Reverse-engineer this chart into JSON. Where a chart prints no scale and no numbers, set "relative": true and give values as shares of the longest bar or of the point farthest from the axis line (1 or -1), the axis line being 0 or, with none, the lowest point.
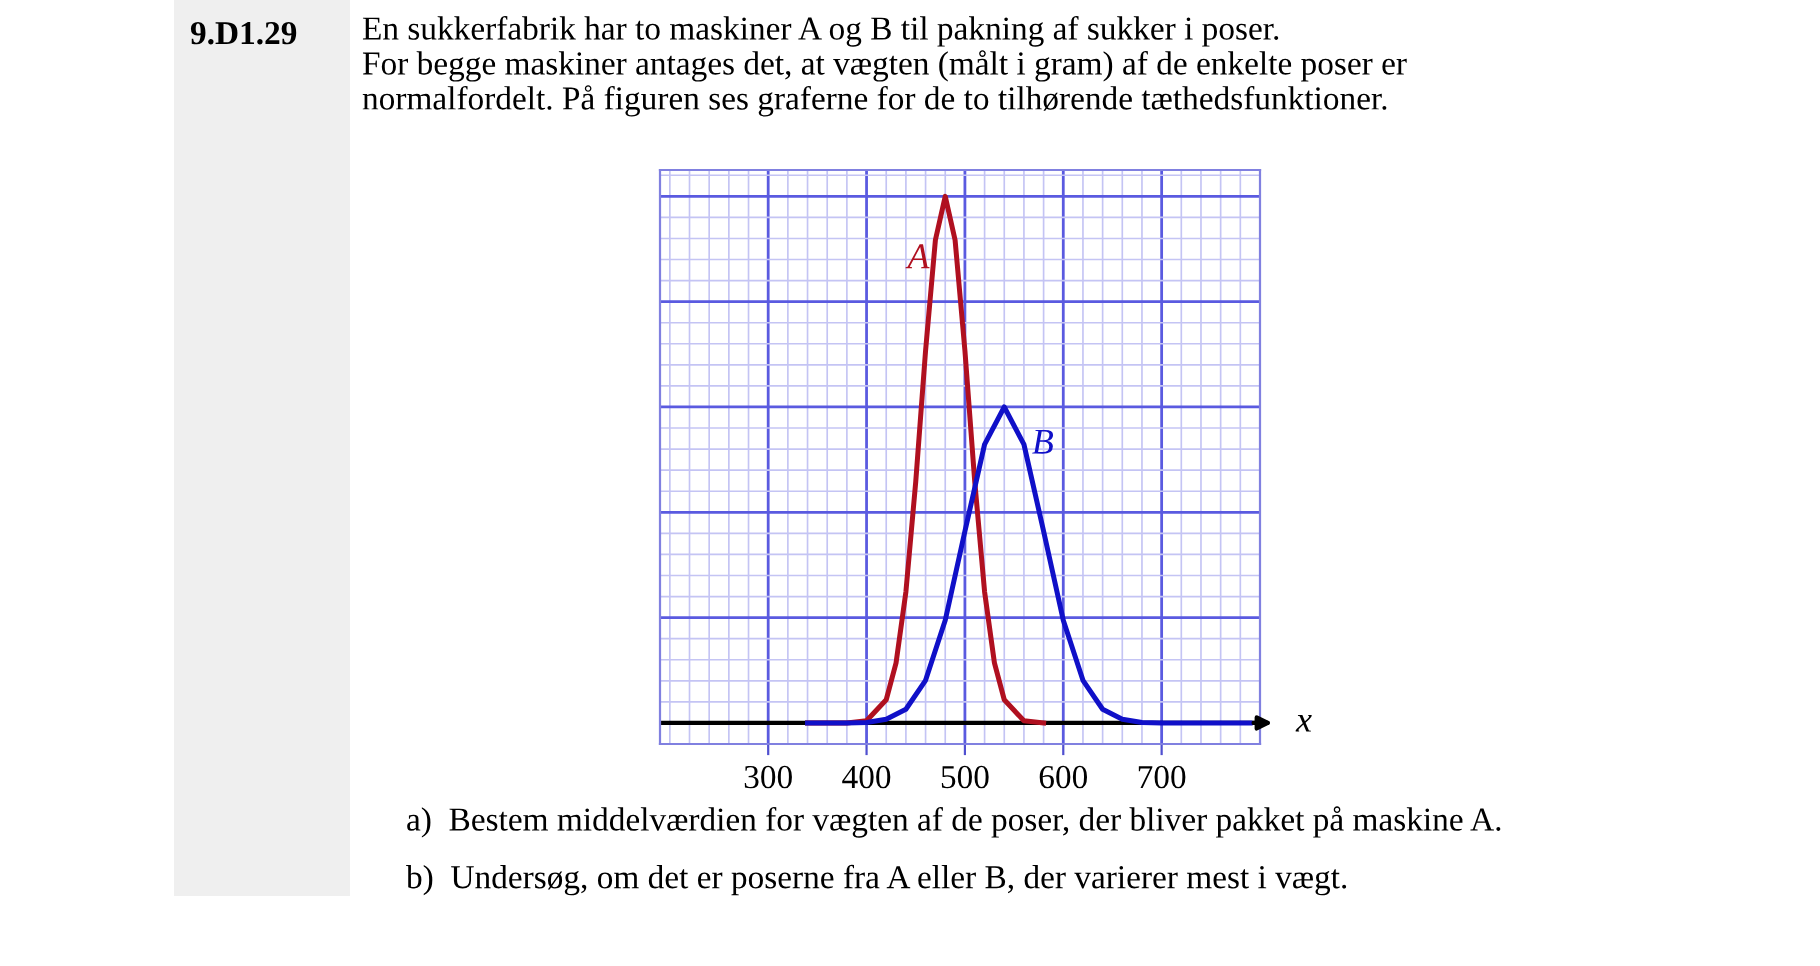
{
  "chart_data": {
    "type": "line",
    "title": "9.D1.29",
    "subtitle": "En sukkerfabrik har to maskiner A og B til pakning af sukker i poser.\nFor begge maskiner antages det, at vægten (målt i gram) af de enkelte poser er\nnormalfordelt. På figuren ses graferne for de to tilhørende tæthedsfunktioner.",
    "xlabel": "x",
    "annotations": [
      "a)  Bestem middelværdien for vægten af de poser, der bliver pakket på maskine A.",
      "b)  Undersøg, om det er poserne fra A eller B, der varierer mest i vægt."
    ],
    "relative": true,
    "xlim": [
      190,
      800
    ],
    "xticks": [
      {
        "value": 200,
        "label": null
      },
      {
        "value": 220,
        "label": null
      },
      {
        "value": 240,
        "label": null
      },
      {
        "value": 260,
        "label": null
      },
      {
        "value": 280,
        "label": null
      },
      300,
      {
        "value": 320,
        "label": null
      },
      {
        "value": 340,
        "label": null
      },
      {
        "value": 360,
        "label": null
      },
      {
        "value": 380,
        "label": null
      },
      400,
      {
        "value": 420,
        "label": null
      },
      {
        "value": 440,
        "label": null
      },
      {
        "value": 460,
        "label": null
      },
      {
        "value": 480,
        "label": null
      },
      500,
      {
        "value": 520,
        "label": null
      },
      {
        "value": 540,
        "label": null
      },
      {
        "value": 560,
        "label": null
      },
      {
        "value": 580,
        "label": null
      },
      600,
      {
        "value": 620,
        "label": null
      },
      {
        "value": 640,
        "label": null
      },
      {
        "value": 660,
        "label": null
      },
      {
        "value": 680,
        "label": null
      },
      700,
      {
        "value": 720,
        "label": null
      },
      {
        "value": 740,
        "label": null
      },
      {
        "value": 760,
        "label": null
      },
      {
        "value": 780,
        "label": null
      },
      {
        "value": 800,
        "label": null
      }
    ],
    "tick_labels": "x",
    "grid": true,
    "legend": false,
    "marker": "none",
    "line_style": "solid",
    "series": [
      {
        "name": "A",
        "color": "#b01020",
        "x": [
          340,
          380,
          400,
          420,
          430,
          440,
          450,
          460,
          470,
          480,
          490,
          500,
          510,
          520,
          530,
          540,
          560,
          580
        ],
        "values": [
          0,
          0,
          0.004,
          0.044,
          0.114,
          0.249,
          0.458,
          0.707,
          0.917,
          1,
          0.917,
          0.707,
          0.458,
          0.249,
          0.114,
          0.044,
          0.004,
          0
        ]
      },
      {
        "name": "B",
        "color": "#1010c8",
        "x": [
          340,
          380,
          400,
          420,
          440,
          460,
          480,
          500,
          520,
          540,
          560,
          580,
          600,
          620,
          640,
          660,
          680,
          700,
          790
        ],
        "values": [
          0,
          0,
          0.001,
          0.007,
          0.026,
          0.081,
          0.195,
          0.364,
          0.529,
          0.6,
          0.529,
          0.364,
          0.195,
          0.081,
          0.026,
          0.007,
          0.001,
          0,
          0
        ]
      }
    ]
  }
}
